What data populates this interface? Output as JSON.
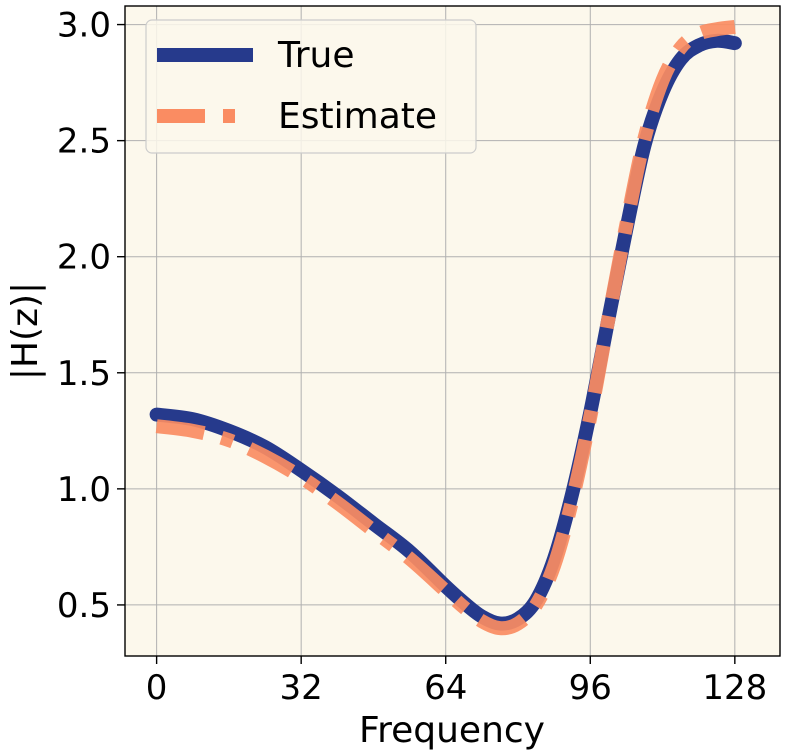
{
  "chart_data": {
    "type": "line",
    "xlabel": "Frequency",
    "ylabel": "|H(z)|",
    "xlim": [
      -7,
      138
    ],
    "ylim": [
      0.28,
      3.08
    ],
    "xticks": [
      0,
      32,
      64,
      96,
      128
    ],
    "xtick_labels": [
      "0",
      "32",
      "64",
      "96",
      "128"
    ],
    "yticks": [
      0.5,
      1.0,
      1.5,
      2.0,
      2.5,
      3.0
    ],
    "ytick_labels": [
      "0.5",
      "1.0",
      "1.5",
      "2.0",
      "2.5",
      "3.0"
    ],
    "grid": true,
    "legend_placement": "upper-left",
    "background": "#fcf8ec",
    "series": [
      {
        "name": "True",
        "color": "#263a8c",
        "style": "solid",
        "x": [
          0,
          8,
          16,
          24,
          32,
          40,
          48,
          56,
          64,
          68,
          72,
          76,
          80,
          84,
          88,
          92,
          96,
          100,
          104,
          108,
          112,
          116,
          120,
          124,
          128
        ],
        "y": [
          1.32,
          1.3,
          1.25,
          1.18,
          1.08,
          0.97,
          0.85,
          0.73,
          0.58,
          0.51,
          0.45,
          0.42,
          0.44,
          0.52,
          0.7,
          0.98,
          1.33,
          1.73,
          2.12,
          2.48,
          2.71,
          2.85,
          2.91,
          2.93,
          2.92
        ]
      },
      {
        "name": "Estimate",
        "color": "#fa8c62",
        "style": "dashdot",
        "x": [
          0,
          8,
          16,
          24,
          32,
          40,
          48,
          56,
          64,
          68,
          72,
          76,
          80,
          84,
          88,
          92,
          96,
          100,
          104,
          108,
          112,
          116,
          120,
          124,
          128
        ],
        "y": [
          1.27,
          1.25,
          1.21,
          1.14,
          1.05,
          0.94,
          0.82,
          0.7,
          0.56,
          0.49,
          0.43,
          0.4,
          0.42,
          0.5,
          0.67,
          0.95,
          1.31,
          1.73,
          2.14,
          2.51,
          2.76,
          2.9,
          2.96,
          2.98,
          2.99
        ]
      }
    ]
  }
}
